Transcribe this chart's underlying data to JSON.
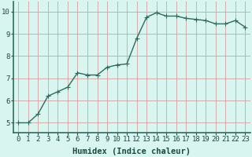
{
  "x": [
    0,
    1,
    2,
    3,
    4,
    5,
    6,
    7,
    8,
    9,
    10,
    11,
    12,
    13,
    14,
    15,
    16,
    17,
    18,
    19,
    20,
    21,
    22,
    23
  ],
  "y": [
    5.0,
    5.0,
    5.4,
    6.2,
    6.4,
    6.6,
    7.25,
    7.15,
    7.15,
    7.5,
    7.6,
    7.65,
    8.8,
    9.75,
    9.95,
    9.8,
    9.8,
    9.7,
    9.65,
    9.6,
    9.45,
    9.45,
    9.6,
    9.3
  ],
  "line_color": "#2d6b5e",
  "marker": "P",
  "marker_size": 2.0,
  "line_width": 1.0,
  "bg_color": "#d9f5f0",
  "grid_color": "#d4a0a0",
  "xlabel": "Humidex (Indice chaleur)",
  "xlabel_fontsize": 7.5,
  "xlabel_fontweight": "bold",
  "xlabel_color": "#1a4a40",
  "ylabel_ticks": [
    5,
    6,
    7,
    8,
    9,
    10
  ],
  "xlim": [
    -0.5,
    23.5
  ],
  "ylim": [
    4.55,
    10.45
  ],
  "tick_fontsize": 6.5,
  "tick_color": "#1a4a40",
  "spine_color": "#2d6b5e",
  "font_family": "monospace"
}
